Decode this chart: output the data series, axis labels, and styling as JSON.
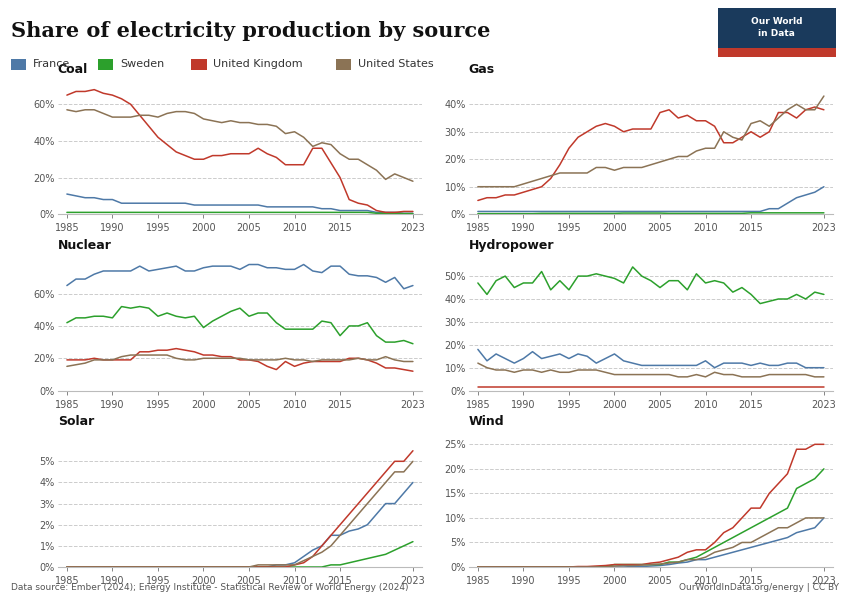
{
  "title": "Share of electricity production by source",
  "countries": [
    "France",
    "Sweden",
    "United Kingdom",
    "United States"
  ],
  "colors": {
    "France": "#4e79a7",
    "Sweden": "#2ca02c",
    "United Kingdom": "#c0392b",
    "United States": "#8B7355"
  },
  "years": [
    1985,
    1986,
    1987,
    1988,
    1989,
    1990,
    1991,
    1992,
    1993,
    1994,
    1995,
    1996,
    1997,
    1998,
    1999,
    2000,
    2001,
    2002,
    2003,
    2004,
    2005,
    2006,
    2007,
    2008,
    2009,
    2010,
    2011,
    2012,
    2013,
    2014,
    2015,
    2016,
    2017,
    2018,
    2019,
    2020,
    2021,
    2022,
    2023
  ],
  "subplots": {
    "Coal": {
      "France": [
        11,
        10,
        9,
        9,
        8,
        8,
        6,
        6,
        6,
        6,
        6,
        6,
        6,
        6,
        5,
        5,
        5,
        5,
        5,
        5,
        5,
        5,
        4,
        4,
        4,
        4,
        4,
        4,
        3,
        3,
        2,
        2,
        2,
        2,
        1,
        1,
        1,
        0.5,
        0.5
      ],
      "Sweden": [
        1,
        1,
        1,
        1,
        1,
        1,
        1,
        1,
        1,
        1,
        1,
        1,
        1,
        1,
        1,
        1,
        1,
        1,
        1,
        1,
        1,
        1,
        1,
        1,
        1,
        1,
        1,
        1,
        1,
        1,
        1,
        1,
        1,
        1,
        0.5,
        0.5,
        0.5,
        0.3,
        0.3
      ],
      "United Kingdom": [
        65,
        67,
        67,
        68,
        66,
        65,
        63,
        60,
        54,
        48,
        42,
        38,
        34,
        32,
        30,
        30,
        32,
        32,
        33,
        33,
        33,
        36,
        33,
        31,
        27,
        27,
        27,
        36,
        36,
        28,
        20,
        8,
        6,
        5,
        2,
        1,
        1,
        1.5,
        1.5
      ],
      "United States": [
        57,
        56,
        57,
        57,
        55,
        53,
        53,
        53,
        54,
        54,
        53,
        55,
        56,
        56,
        55,
        52,
        51,
        50,
        51,
        50,
        50,
        49,
        49,
        48,
        44,
        45,
        42,
        37,
        39,
        38,
        33,
        30,
        30,
        27,
        24,
        19,
        22,
        20,
        18
      ]
    },
    "Gas": {
      "France": [
        1,
        1,
        1,
        1,
        1,
        1,
        1,
        1,
        1,
        1,
        1,
        1,
        1,
        1,
        1,
        1,
        1,
        1,
        1,
        1,
        1,
        1,
        1,
        1,
        1,
        1,
        1,
        1,
        1,
        1,
        1,
        1,
        2,
        2,
        4,
        6,
        7,
        8,
        10
      ],
      "Sweden": [
        0.2,
        0.2,
        0.2,
        0.2,
        0.2,
        0.2,
        0.2,
        0.3,
        0.3,
        0.3,
        0.3,
        0.3,
        0.3,
        0.3,
        0.3,
        0.3,
        0.4,
        0.4,
        0.4,
        0.4,
        0.4,
        0.3,
        0.3,
        0.3,
        0.3,
        0.3,
        0.3,
        0.3,
        0.3,
        0.3,
        0.5,
        0.5,
        0.5,
        0.5,
        0.5,
        0.5,
        0.5,
        0.5,
        0.5
      ],
      "United Kingdom": [
        5,
        6,
        6,
        7,
        7,
        8,
        9,
        10,
        13,
        18,
        24,
        28,
        30,
        32,
        33,
        32,
        30,
        31,
        31,
        31,
        37,
        38,
        35,
        36,
        34,
        34,
        32,
        26,
        26,
        28,
        30,
        28,
        30,
        37,
        37,
        35,
        38,
        39,
        38
      ],
      "United States": [
        10,
        10,
        10,
        10,
        10,
        11,
        12,
        13,
        14,
        15,
        15,
        15,
        15,
        17,
        17,
        16,
        17,
        17,
        17,
        18,
        19,
        20,
        21,
        21,
        23,
        24,
        24,
        30,
        28,
        27,
        33,
        34,
        32,
        35,
        38,
        40,
        38,
        38,
        43
      ]
    },
    "Nuclear": {
      "France": [
        65,
        69,
        69,
        72,
        74,
        74,
        74,
        74,
        77,
        74,
        75,
        76,
        77,
        74,
        74,
        76,
        77,
        77,
        77,
        75,
        78,
        78,
        76,
        76,
        75,
        75,
        78,
        74,
        73,
        77,
        77,
        72,
        71,
        71,
        70,
        67,
        70,
        63,
        65
      ],
      "Sweden": [
        42,
        45,
        45,
        46,
        46,
        45,
        52,
        51,
        52,
        51,
        46,
        48,
        46,
        45,
        46,
        39,
        43,
        46,
        49,
        51,
        46,
        48,
        48,
        42,
        38,
        38,
        38,
        38,
        43,
        42,
        34,
        40,
        40,
        42,
        34,
        30,
        30,
        31,
        29
      ],
      "United Kingdom": [
        19,
        19,
        19,
        20,
        19,
        19,
        19,
        19,
        24,
        24,
        25,
        25,
        26,
        25,
        24,
        22,
        22,
        21,
        21,
        19,
        19,
        18,
        15,
        13,
        18,
        15,
        17,
        18,
        18,
        18,
        18,
        20,
        20,
        19,
        17,
        14,
        14,
        13,
        12
      ],
      "United States": [
        15,
        16,
        17,
        19,
        19,
        19,
        21,
        22,
        22,
        22,
        22,
        22,
        20,
        19,
        19,
        20,
        20,
        20,
        20,
        20,
        19,
        19,
        19,
        19,
        20,
        19,
        19,
        18,
        19,
        19,
        19,
        19,
        20,
        19,
        19,
        21,
        19,
        18,
        18
      ]
    },
    "Hydropower": {
      "France": [
        18,
        13,
        16,
        14,
        12,
        14,
        17,
        14,
        15,
        16,
        14,
        16,
        15,
        12,
        14,
        16,
        13,
        12,
        11,
        11,
        11,
        11,
        11,
        11,
        11,
        13,
        10,
        12,
        12,
        12,
        11,
        12,
        11,
        11,
        12,
        12,
        10,
        10,
        10
      ],
      "Sweden": [
        47,
        42,
        48,
        50,
        45,
        47,
        47,
        52,
        44,
        48,
        44,
        50,
        50,
        51,
        50,
        49,
        47,
        54,
        50,
        48,
        45,
        48,
        48,
        44,
        51,
        47,
        48,
        47,
        43,
        45,
        42,
        38,
        39,
        40,
        40,
        42,
        40,
        43,
        42
      ],
      "United Kingdom": [
        1.5,
        1.5,
        1.5,
        1.5,
        1.5,
        1.5,
        1.5,
        1.5,
        1.5,
        1.5,
        1.5,
        1.5,
        1.5,
        1.5,
        1.5,
        1.5,
        1.5,
        1.5,
        1.5,
        1.5,
        1.5,
        1.5,
        1.5,
        1.5,
        1.5,
        1.5,
        1.5,
        1.5,
        1.5,
        1.5,
        1.5,
        1.5,
        1.5,
        1.5,
        1.5,
        1.5,
        1.5,
        1.5,
        1.5
      ],
      "United States": [
        12,
        10,
        9,
        9,
        8,
        9,
        9,
        8,
        9,
        8,
        8,
        9,
        9,
        9,
        8,
        7,
        7,
        7,
        7,
        7,
        7,
        7,
        6,
        6,
        7,
        6,
        8,
        7,
        7,
        6,
        6,
        6,
        7,
        7,
        7,
        7,
        7,
        6,
        6
      ]
    },
    "Solar": {
      "France": [
        0,
        0,
        0,
        0,
        0,
        0,
        0,
        0,
        0,
        0,
        0,
        0,
        0,
        0,
        0,
        0,
        0,
        0,
        0,
        0,
        0,
        0,
        0,
        0.1,
        0.1,
        0.2,
        0.5,
        0.8,
        1,
        1.5,
        1.5,
        1.7,
        1.8,
        2,
        2.5,
        3,
        3,
        3.5,
        4
      ],
      "Sweden": [
        0,
        0,
        0,
        0,
        0,
        0,
        0,
        0,
        0,
        0,
        0,
        0,
        0,
        0,
        0,
        0,
        0,
        0,
        0,
        0,
        0,
        0,
        0,
        0,
        0,
        0,
        0,
        0,
        0,
        0.1,
        0.1,
        0.2,
        0.3,
        0.4,
        0.5,
        0.6,
        0.8,
        1,
        1.2
      ],
      "United Kingdom": [
        0,
        0,
        0,
        0,
        0,
        0,
        0,
        0,
        0,
        0,
        0,
        0,
        0,
        0,
        0,
        0,
        0,
        0,
        0,
        0,
        0,
        0,
        0,
        0,
        0,
        0.1,
        0.2,
        0.5,
        1,
        1.5,
        2,
        2.5,
        3,
        3.5,
        4,
        4.5,
        5,
        5,
        5.5
      ],
      "United States": [
        0,
        0,
        0,
        0,
        0,
        0,
        0,
        0,
        0,
        0,
        0,
        0,
        0,
        0,
        0,
        0,
        0,
        0,
        0,
        0,
        0,
        0.1,
        0.1,
        0.1,
        0.1,
        0.1,
        0.3,
        0.5,
        0.7,
        1,
        1.5,
        2,
        2.5,
        3,
        3.5,
        4,
        4.5,
        4.5,
        5
      ]
    },
    "Wind": {
      "France": [
        0,
        0,
        0,
        0,
        0,
        0,
        0,
        0,
        0,
        0,
        0,
        0,
        0,
        0,
        0,
        0,
        0,
        0.1,
        0.1,
        0.2,
        0.3,
        0.5,
        0.8,
        1,
        1.5,
        1.5,
        2,
        2.5,
        3,
        3.5,
        4,
        4.5,
        5,
        5.5,
        6,
        7,
        7.5,
        8,
        10
      ],
      "Sweden": [
        0,
        0,
        0,
        0,
        0,
        0,
        0,
        0,
        0,
        0,
        0,
        0,
        0,
        0,
        0,
        0.5,
        0.5,
        0.5,
        0.5,
        0.5,
        0.5,
        1,
        1,
        1.5,
        2,
        3,
        4,
        5,
        6,
        7,
        8,
        9,
        10,
        11,
        12,
        16,
        17,
        18,
        20
      ],
      "United Kingdom": [
        0,
        0,
        0,
        0,
        0,
        0,
        0,
        0,
        0,
        0,
        0,
        0.1,
        0.1,
        0.2,
        0.3,
        0.5,
        0.5,
        0.5,
        0.5,
        0.8,
        1,
        1.5,
        2,
        3,
        3.5,
        3.5,
        5,
        7,
        8,
        10,
        12,
        12,
        15,
        17,
        19,
        24,
        24,
        25,
        25
      ],
      "United States": [
        0,
        0,
        0,
        0,
        0,
        0,
        0,
        0,
        0,
        0,
        0,
        0,
        0,
        0,
        0,
        0.2,
        0.3,
        0.3,
        0.4,
        0.5,
        0.6,
        0.8,
        1,
        1.5,
        1.5,
        2,
        3,
        3.5,
        4,
        5,
        5,
        6,
        7,
        8,
        8,
        9,
        10,
        10,
        10
      ]
    }
  },
  "ylims": {
    "Coal": [
      0,
      75
    ],
    "Gas": [
      0,
      50
    ],
    "Nuclear": [
      0,
      85
    ],
    "Hydropower": [
      0,
      60
    ],
    "Solar": [
      0,
      6.5
    ],
    "Wind": [
      0,
      28
    ]
  },
  "yticks": {
    "Coal": [
      0,
      20,
      40,
      60
    ],
    "Gas": [
      0,
      10,
      20,
      30,
      40
    ],
    "Nuclear": [
      0,
      20,
      40,
      60
    ],
    "Hydropower": [
      0,
      10,
      20,
      30,
      40,
      50
    ],
    "Solar": [
      0,
      1,
      2,
      3,
      4,
      5
    ],
    "Wind": [
      0,
      5,
      10,
      15,
      20,
      25
    ]
  },
  "source_text": "Data source: Ember (2024); Energy Institute - Statistical Review of World Energy (2024)",
  "url_text": "OurWorldInData.org/energy | CC BY",
  "logo_bg": "#1a3a5c",
  "logo_red": "#c0392b",
  "logo_text1": "Our World",
  "logo_text2": "in Data"
}
